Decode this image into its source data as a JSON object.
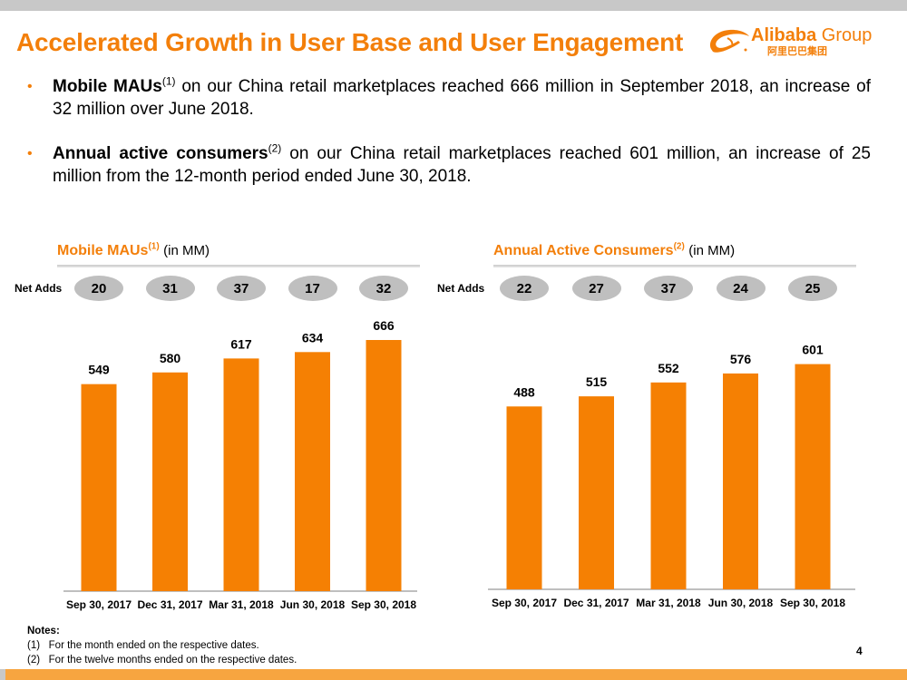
{
  "slide": {
    "title": "Accelerated Growth in User Base and User Engagement",
    "logo_text_bold": "Alibaba",
    "logo_text": " Group",
    "logo_cn": "阿里巴巴集团",
    "page_number": "4",
    "accent_color": "#f37f0a",
    "bar_color": "#f58003",
    "pill_color": "#bfbfbf"
  },
  "bullets": [
    {
      "bold": "Mobile MAUs",
      "sup": "(1)",
      "text": " on our China retail marketplaces reached 666 million in September 2018, an increase of 32 million over June 2018."
    },
    {
      "bold": "Annual active consumers",
      "sup": "(2)",
      "text": " on our China retail marketplaces reached 601 million, an increase of 25 million from the 12-month period ended June 30, 2018."
    }
  ],
  "net_adds_label": "Net Adds",
  "chart_data": [
    {
      "type": "bar",
      "title": "Mobile MAUs",
      "title_sup": "(1)",
      "unit": "(in MM)",
      "categories": [
        "Sep 30, 2017",
        "Dec 31, 2017",
        "Mar 31, 2018",
        "Jun 30, 2018",
        "Sep 30, 2018"
      ],
      "values": [
        549,
        580,
        617,
        634,
        666
      ],
      "net_adds": [
        "20",
        "31",
        "37",
        "17",
        "32"
      ],
      "ylim": [
        0,
        720
      ]
    },
    {
      "type": "bar",
      "title": "Annual Active Consumers",
      "title_sup": "(2)",
      "unit": "(in MM)",
      "categories": [
        "Sep 30, 2017",
        "Dec 31, 2017",
        "Mar 31, 2018",
        "Jun 30, 2018",
        "Sep 30, 2018"
      ],
      "values": [
        488,
        515,
        552,
        576,
        601
      ],
      "net_adds": [
        "22",
        "27",
        "37",
        "24",
        "25"
      ],
      "ylim": [
        0,
        720
      ]
    }
  ],
  "notes": {
    "heading": "Notes:",
    "items": [
      {
        "marker": "(1)",
        "text": "For the month ended on the respective dates."
      },
      {
        "marker": "(2)",
        "text": "For the twelve months ended on the respective dates."
      }
    ]
  }
}
